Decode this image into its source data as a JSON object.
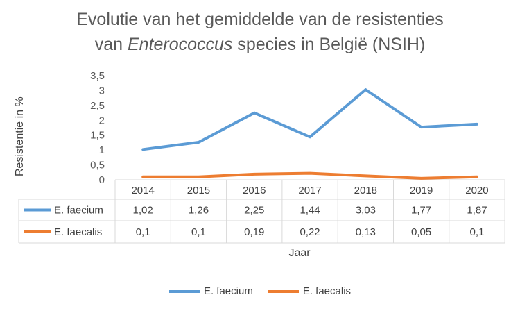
{
  "chart_data": {
    "type": "line",
    "title_line1": "Evolutie van het gemiddelde van de resistenties",
    "title_line2_prefix": "van ",
    "title_line2_italic": "Enterococcus",
    "title_line2_suffix": " species in België (NSIH)",
    "xlabel": "Jaar",
    "ylabel": "Resistentie in %",
    "ylim": [
      0,
      3.5
    ],
    "yticks": [
      "0",
      "0,5",
      "1",
      "1,5",
      "2",
      "2,5",
      "3",
      "3,5"
    ],
    "ytick_values": [
      0,
      0.5,
      1,
      1.5,
      2,
      2.5,
      3,
      3.5
    ],
    "categories": [
      "2014",
      "2015",
      "2016",
      "2017",
      "2018",
      "2019",
      "2020"
    ],
    "series": [
      {
        "name": "E. faecium",
        "color": "#5b9bd5",
        "values": [
          1.02,
          1.26,
          2.25,
          1.44,
          3.03,
          1.77,
          1.87
        ],
        "labels": [
          "1,02",
          "1,26",
          "2,25",
          "1,44",
          "3,03",
          "1,77",
          "1,87"
        ]
      },
      {
        "name": "E. faecalis",
        "color": "#ed7d31",
        "values": [
          0.1,
          0.1,
          0.19,
          0.22,
          0.13,
          0.05,
          0.1
        ],
        "labels": [
          "0,1",
          "0,1",
          "0,19",
          "0,22",
          "0,13",
          "0,05",
          "0,1"
        ]
      }
    ],
    "grid": false,
    "legend_position": "bottom",
    "data_table": true
  }
}
